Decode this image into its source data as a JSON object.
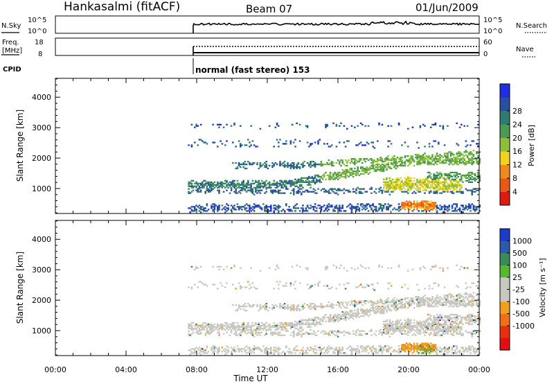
{
  "header": {
    "station": "Hankasalmi (fitACF)",
    "beam": "Beam 07",
    "date": "01/Jun/2009"
  },
  "mini_panels": {
    "nsky_label": "N.Sky",
    "nsky_ticks": [
      "10^5",
      "10^0"
    ],
    "nsearch_label": "N.Search",
    "nsearch_ticks": [
      "10^5",
      "10^0"
    ],
    "freq_label": "Freq.",
    "freq_unit": "[MHz]",
    "freq_ticks": [
      "18",
      "8"
    ],
    "nave_label": "Nave",
    "nave_ticks": [
      "60",
      "0"
    ],
    "cpid_label": "CPID",
    "cpid_text": "normal (fast stereo) 153"
  },
  "chart_data": [
    {
      "type": "heatmap",
      "title": "Power",
      "ylabel": "Slant Range [km]",
      "xlabel": "Time UT",
      "ylim": [
        180,
        4620
      ],
      "xlim": [
        0,
        24
      ],
      "ytick_labels": [
        "1000",
        "2000",
        "3000",
        "4000"
      ],
      "yticks": [
        1000,
        2000,
        3000,
        4000
      ],
      "xtick_labels": [
        "00:00",
        "04:00",
        "08:00",
        "12:00",
        "16:00",
        "20:00",
        "00:00"
      ],
      "xticks": [
        0,
        4,
        8,
        12,
        16,
        20,
        24
      ],
      "data_start_ut": 7.5,
      "colorbar": {
        "label": "Power [dB]",
        "ticks": [
          "4",
          "8",
          "12",
          "16",
          "20",
          "24",
          "28"
        ],
        "colors": [
          "#1f2fe0",
          "#2a4ea0",
          "#2e7b70",
          "#4d9a55",
          "#8fbf3a",
          "#f2d21a",
          "#f08a1c",
          "#e85a14",
          "#e01a10"
        ]
      }
    },
    {
      "type": "heatmap",
      "title": "Velocity",
      "ylabel": "Slant Range [km]",
      "xlabel": "Time UT",
      "ylim": [
        180,
        4620
      ],
      "xlim": [
        0,
        24
      ],
      "ytick_labels": [
        "1000",
        "2000",
        "3000",
        "4000"
      ],
      "yticks": [
        1000,
        2000,
        3000,
        4000
      ],
      "xtick_labels": [
        "00:00",
        "04:00",
        "08:00",
        "12:00",
        "16:00",
        "20:00",
        "00:00"
      ],
      "xticks": [
        0,
        4,
        8,
        12,
        16,
        20,
        24
      ],
      "data_start_ut": 7.5,
      "colorbar": {
        "label": "Velocity [m s⁻¹]",
        "ticks": [
          "1000",
          "500",
          "100",
          "25",
          "-25",
          "-100",
          "-500",
          "-1000"
        ],
        "colors": [
          "#1a3cc8",
          "#2f5aa8",
          "#3a8a5a",
          "#55b830",
          "#c8c8c0",
          "#c8c8c0",
          "#f0a020",
          "#f07018",
          "#e83010",
          "#e01010"
        ]
      }
    }
  ]
}
